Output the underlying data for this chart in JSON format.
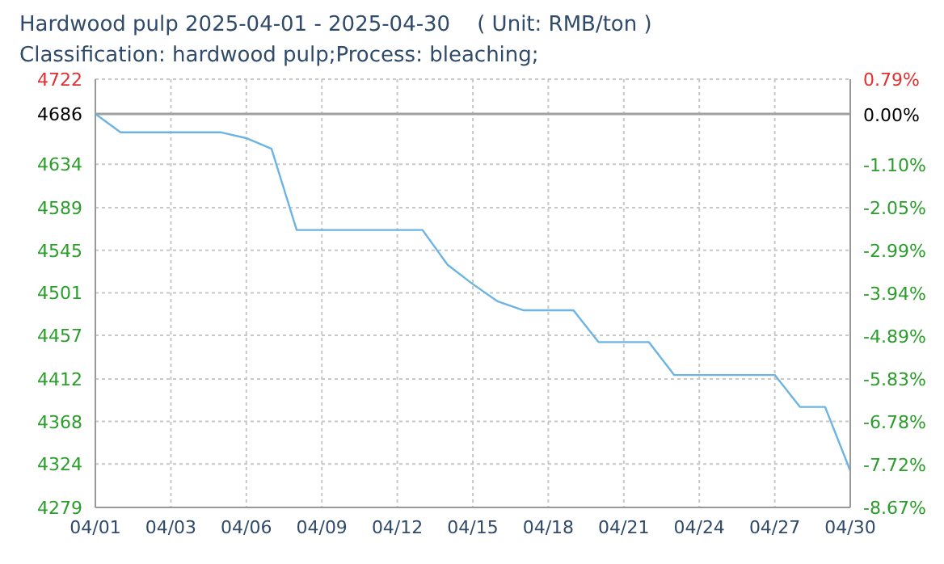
{
  "chart_data": {
    "type": "line",
    "title": "Hardwood pulp 2025-04-01 - 2025-04-30    ( Unit: RMB/ton )",
    "subtitle": "Classification: hardwood pulp;Process: bleaching;",
    "categories": [
      "04/01",
      null,
      null,
      "04/03",
      null,
      null,
      "04/06",
      null,
      null,
      "04/09",
      null,
      null,
      "04/12",
      null,
      null,
      "04/15",
      null,
      null,
      "04/18",
      null,
      null,
      "04/21",
      null,
      null,
      "04/24",
      null,
      null,
      "04/27",
      null,
      null,
      "04/30"
    ],
    "series": [
      {
        "color": "#6cb4e4",
        "values": [
          4686,
          4667,
          4667,
          4667,
          4667,
          4667,
          4661,
          4650,
          4566,
          4566,
          4566,
          4566,
          4566,
          4566,
          4530,
          4510,
          4492,
          4483,
          4483,
          4483,
          4450,
          4450,
          4450,
          4416,
          4416,
          4416,
          4416,
          4416,
          4383,
          4383,
          4317
        ]
      }
    ],
    "ylim": [
      4279,
      4722
    ],
    "yticks": [
      4279,
      4324,
      4368,
      4412,
      4457,
      4501,
      4545,
      4589,
      4634,
      4686,
      4722
    ],
    "y2lim": [
      -8.67,
      0.79
    ],
    "y2ticks": [
      {
        "value": -8.67,
        "label": "-8.67%"
      },
      {
        "value": -7.72,
        "label": "-7.72%"
      },
      {
        "value": -6.78,
        "label": "-6.78%"
      },
      {
        "value": -5.83,
        "label": "-5.83%"
      },
      {
        "value": -4.89,
        "label": "-4.89%"
      },
      {
        "value": -3.94,
        "label": "-3.94%"
      },
      {
        "value": -2.99,
        "label": "-2.99%"
      },
      {
        "value": -2.05,
        "label": "-2.05%"
      },
      {
        "value": -1.1,
        "label": "-1.10%"
      },
      {
        "value": 0,
        "label": "0.00%"
      },
      {
        "value": 0.79,
        "label": "0.79%"
      }
    ],
    "ref_lines": [
      {
        "axis": "y",
        "value": 4686,
        "color": "#a0a0a0"
      }
    ],
    "grid": true,
    "marker": "none",
    "line_style": "solid"
  }
}
